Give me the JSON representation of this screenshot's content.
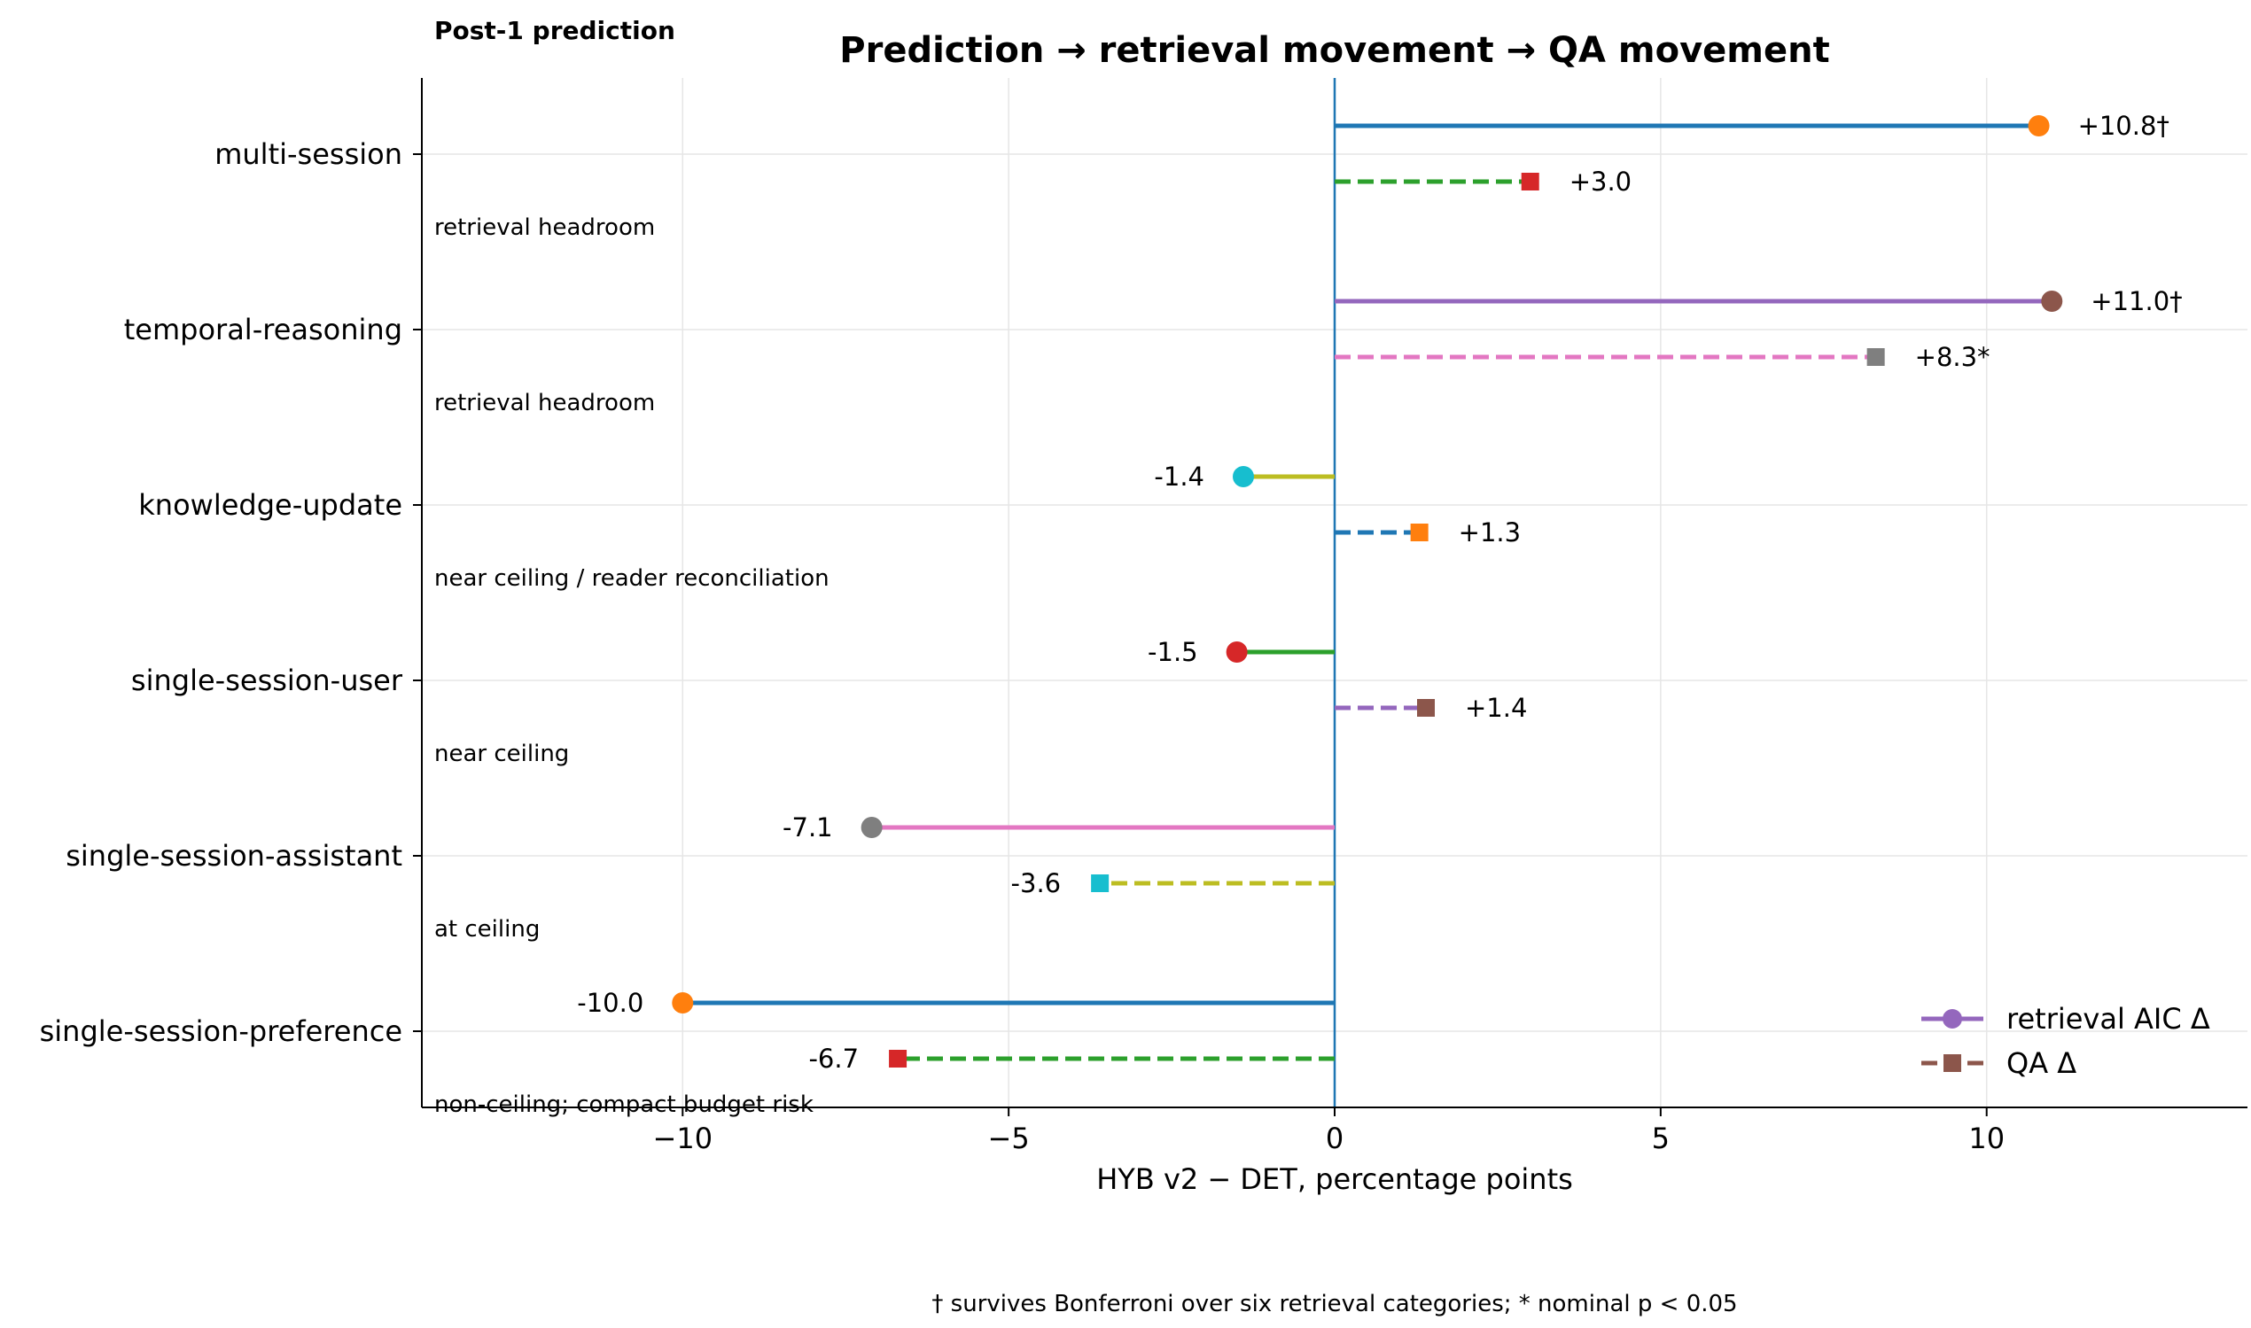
{
  "chart_data": {
    "type": "lollipop",
    "title": "Prediction → retrieval movement → QA movement",
    "corner_label": "Post-1 prediction",
    "xlabel": "HYB v2 − DET, percentage points",
    "xlim": [
      -14.0,
      14.0
    ],
    "xticks": [
      -10,
      -5,
      0,
      5,
      10
    ],
    "xtick_labels": [
      "−10",
      "−5",
      "0",
      "5",
      "10"
    ],
    "grid": true,
    "legend_position": "lower-right",
    "legend": [
      {
        "label": "retrieval AIC Δ",
        "marker": "circle",
        "linestyle": "solid",
        "line_color": "#9467bd",
        "marker_color": "#9467bd"
      },
      {
        "label": "QA Δ",
        "marker": "square",
        "linestyle": "dashed",
        "line_color": "#8c564b",
        "marker_color": "#8c564b"
      }
    ],
    "categories": [
      {
        "name": "multi-session",
        "note": "retrieval headroom",
        "retrieval": {
          "value": 10.8,
          "label": "+10.8†",
          "line_color": "#1f77b4",
          "marker_color": "#ff7f0e"
        },
        "qa": {
          "value": 3.0,
          "label": "+3.0",
          "line_color": "#2ca02c",
          "marker_color": "#d62728"
        }
      },
      {
        "name": "temporal-reasoning",
        "note": "retrieval headroom",
        "retrieval": {
          "value": 11.0,
          "label": "+11.0†",
          "line_color": "#9467bd",
          "marker_color": "#8c564b"
        },
        "qa": {
          "value": 8.3,
          "label": "+8.3*",
          "line_color": "#e377c2",
          "marker_color": "#7f7f7f"
        }
      },
      {
        "name": "knowledge-update",
        "note": "near ceiling / reader reconciliation",
        "retrieval": {
          "value": -1.4,
          "label": "-1.4",
          "line_color": "#bcbd22",
          "marker_color": "#17becf"
        },
        "qa": {
          "value": 1.3,
          "label": "+1.3",
          "line_color": "#1f77b4",
          "marker_color": "#ff7f0e"
        }
      },
      {
        "name": "single-session-user",
        "note": "near ceiling",
        "retrieval": {
          "value": -1.5,
          "label": "-1.5",
          "line_color": "#2ca02c",
          "marker_color": "#d62728"
        },
        "qa": {
          "value": 1.4,
          "label": "+1.4",
          "line_color": "#9467bd",
          "marker_color": "#8c564b"
        }
      },
      {
        "name": "single-session-assistant",
        "note": "at ceiling",
        "retrieval": {
          "value": -7.1,
          "label": "-7.1",
          "line_color": "#e377c2",
          "marker_color": "#7f7f7f"
        },
        "qa": {
          "value": -3.6,
          "label": "-3.6",
          "line_color": "#bcbd22",
          "marker_color": "#17becf"
        }
      },
      {
        "name": "single-session-preference",
        "note": "non-ceiling; compact budget risk",
        "retrieval": {
          "value": -10.0,
          "label": "-10.0",
          "line_color": "#1f77b4",
          "marker_color": "#ff7f0e"
        },
        "qa": {
          "value": -6.7,
          "label": "-6.7",
          "line_color": "#2ca02c",
          "marker_color": "#d62728"
        }
      }
    ],
    "footnote": "† survives Bonferroni over six retrieval categories; * nominal p < 0.05"
  }
}
